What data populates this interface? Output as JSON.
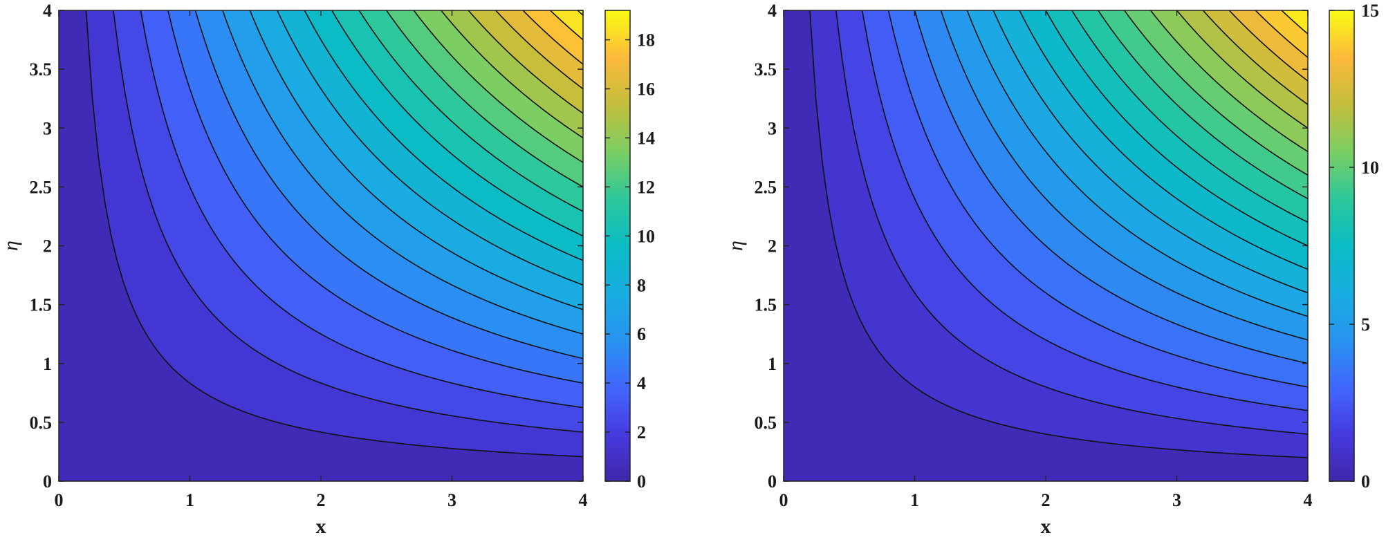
{
  "chart_data": [
    {
      "type": "heatmap",
      "subtype": "filled-contour",
      "title": "",
      "xlabel": "x",
      "ylabel": "η",
      "xlim": [
        0,
        4
      ],
      "ylim": [
        0,
        4
      ],
      "x_ticks": [
        "0",
        "1",
        "2",
        "3",
        "4"
      ],
      "y_ticks": [
        "0",
        "0.5",
        "1",
        "1.5",
        "2",
        "2.5",
        "3",
        "3.5",
        "4"
      ],
      "field": "z = 1.2 * x * η",
      "contour_levels": [
        0,
        1,
        2,
        3,
        4,
        5,
        6,
        7,
        8,
        9,
        10,
        11,
        12,
        13,
        14,
        15,
        16,
        17,
        18,
        19
      ],
      "color_range": [
        0,
        19.2
      ],
      "colorbar_ticks": [
        "0",
        "2",
        "4",
        "6",
        "8",
        "10",
        "12",
        "14",
        "16",
        "18"
      ],
      "colormap": "parula",
      "grid": false
    },
    {
      "type": "heatmap",
      "subtype": "filled-contour",
      "title": "",
      "xlabel": "x",
      "ylabel": "η",
      "xlim": [
        0,
        4
      ],
      "ylim": [
        0,
        4
      ],
      "x_ticks": [
        "0",
        "1",
        "2",
        "3",
        "4"
      ],
      "y_ticks": [
        "0",
        "0.5",
        "1",
        "1.5",
        "2",
        "2.5",
        "3",
        "3.5",
        "4"
      ],
      "field": "z = 0.9375 * x * η",
      "contour_levels": [
        0,
        0.75,
        1.5,
        2.25,
        3,
        3.75,
        4.5,
        5.25,
        6,
        6.75,
        7.5,
        8.25,
        9,
        9.75,
        10.5,
        11.25,
        12,
        12.75,
        13.5,
        14.25
      ],
      "color_range": [
        0,
        15
      ],
      "colorbar_ticks": [
        "0",
        "5",
        "10",
        "15"
      ],
      "colormap": "parula",
      "grid": false
    }
  ]
}
